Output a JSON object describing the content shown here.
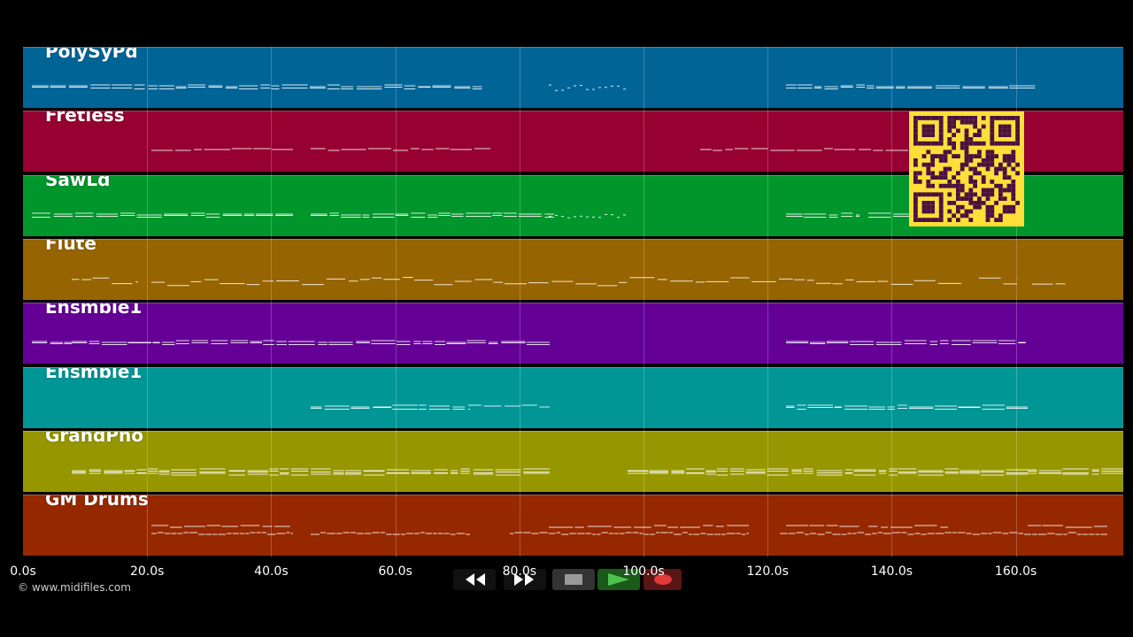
{
  "tracks": [
    {
      "name": "PolySyPd",
      "color": "#006496"
    },
    {
      "name": "Fretless",
      "color": "#960032"
    },
    {
      "name": "SawLd",
      "color": "#00962c"
    },
    {
      "name": "Flute",
      "color": "#966400"
    },
    {
      "name": "Ensmble1",
      "color": "#640096"
    },
    {
      "name": "Ensmble1",
      "color": "#009696"
    },
    {
      "name": "GrandPno",
      "color": "#969600"
    },
    {
      "name": "GM Drums",
      "color": "#962800"
    }
  ],
  "timeline": {
    "ticks": [
      "0.0s",
      "20.0s",
      "40.0s",
      "60.0s",
      "80.0s",
      "100.0s",
      "120.0s",
      "140.0s",
      "160.0s"
    ]
  },
  "footer": {
    "copyright": "© www.midifiles.com"
  },
  "transport": {
    "rewind_icon": "rewind-icon",
    "forward_icon": "fast-forward-icon",
    "stop_icon": "stop-icon",
    "play_icon": "play-icon",
    "record_icon": "record-icon"
  }
}
